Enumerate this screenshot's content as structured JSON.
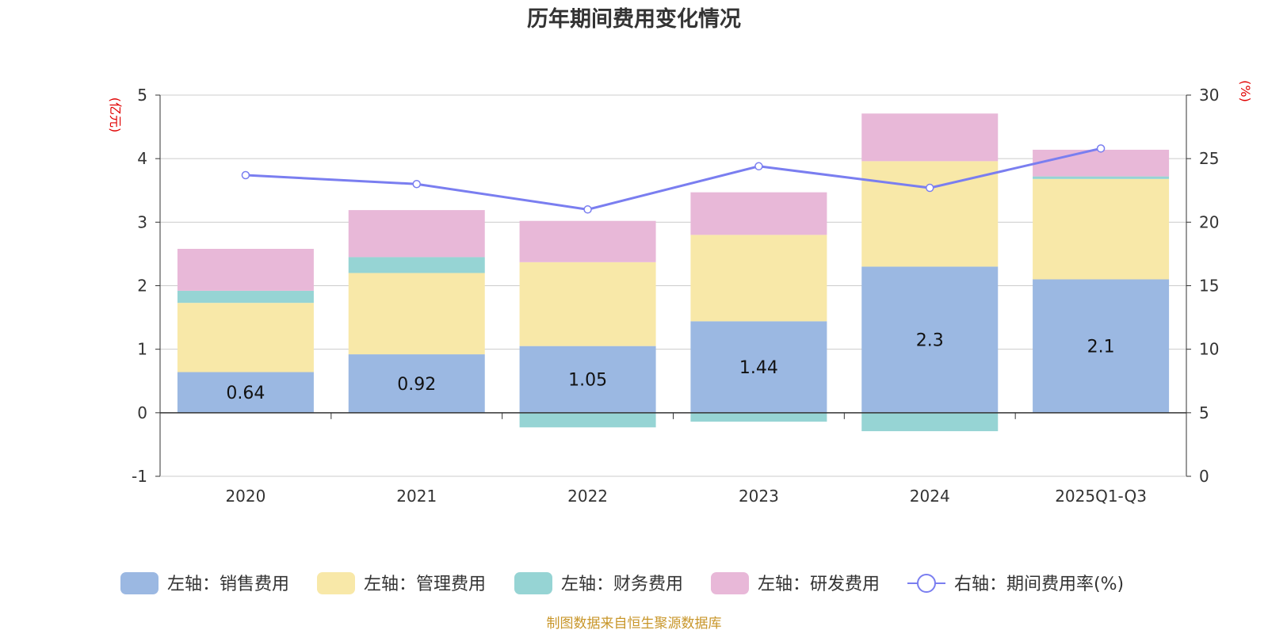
{
  "chart_data": {
    "type": "bar",
    "stacked": true,
    "title": "历年期间费用变化情况",
    "categories": [
      "2020",
      "2021",
      "2022",
      "2023",
      "2024",
      "2025Q1-Q3"
    ],
    "left_axis": {
      "unit_label": "(亿元)",
      "min": -1,
      "max": 5,
      "ticks": [
        "-1",
        "0",
        "1",
        "2",
        "3",
        "4",
        "5"
      ]
    },
    "right_axis": {
      "unit_label": "(%)",
      "min": 0,
      "max": 30,
      "ticks": [
        "0",
        "5",
        "10",
        "15",
        "20",
        "25",
        "30"
      ]
    },
    "series": [
      {
        "name": "左轴：销售费用",
        "color": "#9bb8e2",
        "values": [
          0.64,
          0.92,
          1.05,
          1.44,
          2.3,
          2.1
        ],
        "labels": [
          "0.64",
          "0.92",
          "1.05",
          "1.44",
          "2.3",
          "2.1"
        ]
      },
      {
        "name": "左轴：管理费用",
        "color": "#f8e8a8",
        "values": [
          1.09,
          1.28,
          1.32,
          1.36,
          1.66,
          1.58
        ],
        "labels": []
      },
      {
        "name": "左轴：财务费用",
        "color": "#96d4d4",
        "values": [
          0.19,
          0.25,
          -0.23,
          -0.14,
          -0.29,
          0.04
        ],
        "labels": []
      },
      {
        "name": "左轴：研发费用",
        "color": "#e8b8d8",
        "values": [
          0.66,
          0.74,
          0.65,
          0.67,
          0.75,
          0.42
        ],
        "labels": []
      }
    ],
    "line": {
      "name": "右轴：期间费用率(%)",
      "color": "#7a7ef0",
      "axis": "right",
      "values": [
        23.7,
        23.0,
        21.0,
        24.4,
        22.7,
        25.8
      ]
    }
  },
  "source": "制图数据来自恒生聚源数据库"
}
